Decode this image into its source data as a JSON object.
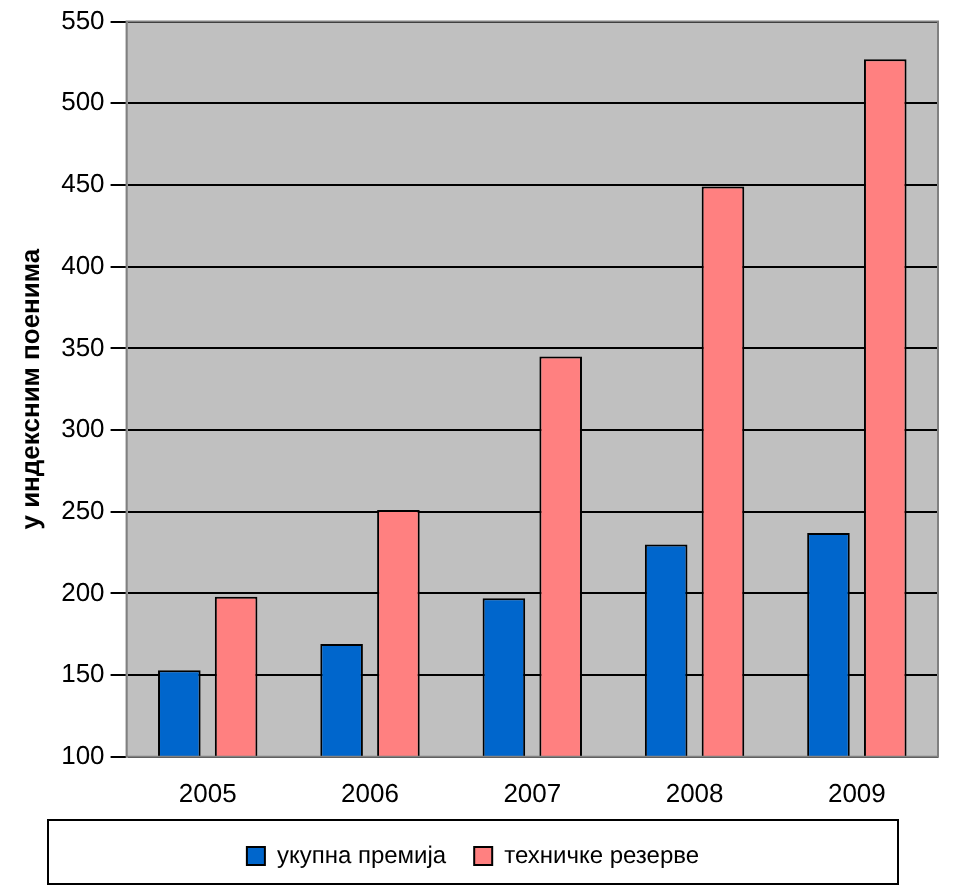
{
  "chart_data": {
    "type": "bar",
    "ylabel": "у индексним поенима",
    "categories": [
      "2005",
      "2006",
      "2007",
      "2008",
      "2009"
    ],
    "series": [
      {
        "name": "укупна премија",
        "color": "#0066cc",
        "values": [
          153,
          169,
          197,
          230,
          237
        ]
      },
      {
        "name": "техничке резерве",
        "color": "#ff8080",
        "values": [
          198,
          251,
          345,
          449,
          527
        ]
      }
    ],
    "ylim": [
      100,
      550
    ],
    "yticks": [
      100,
      150,
      200,
      250,
      300,
      350,
      400,
      450,
      500,
      550
    ],
    "grid": "y",
    "legend": "bottom"
  }
}
